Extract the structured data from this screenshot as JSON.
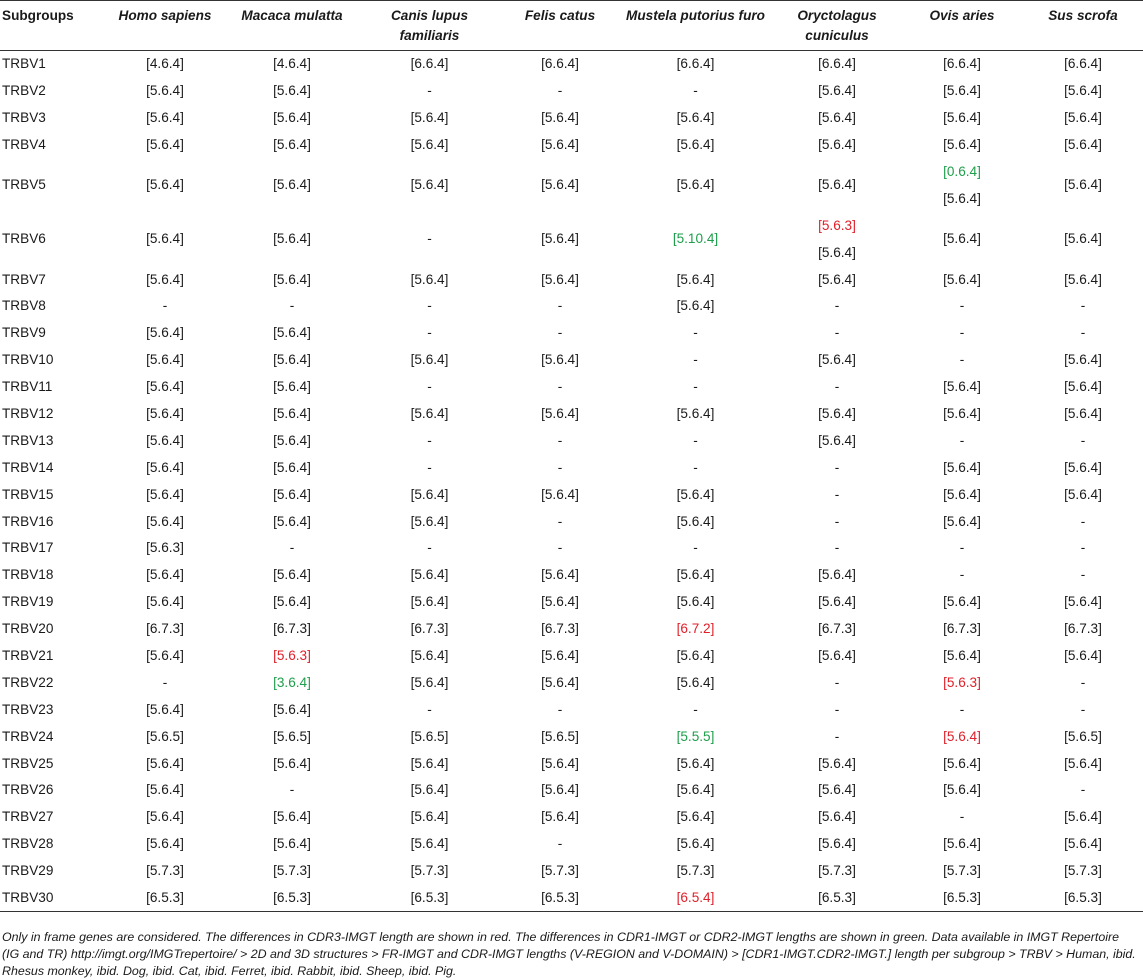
{
  "table": {
    "headers": [
      "Subgroups",
      "Homo sapiens",
      "Macaca mulatta",
      "Canis lupus familiaris",
      "Felis catus",
      "Mustela putorius furo",
      "Oryctolagus cuniculus",
      "Ovis aries",
      "Sus scrofa"
    ],
    "colors": {
      "red": "#e0202a",
      "green": "#1f9e4b"
    },
    "rows": [
      [
        "TRBV1",
        "[4.6.4]",
        "[4.6.4]",
        "[6.6.4]",
        "[6.6.4]",
        "[6.6.4]",
        "[6.6.4]",
        "[6.6.4]",
        "[6.6.4]"
      ],
      [
        "TRBV2",
        "[5.6.4]",
        "[5.6.4]",
        "-",
        "-",
        "-",
        "[5.6.4]",
        "[5.6.4]",
        "[5.6.4]"
      ],
      [
        "TRBV3",
        "[5.6.4]",
        "[5.6.4]",
        "[5.6.4]",
        "[5.6.4]",
        "[5.6.4]",
        "[5.6.4]",
        "[5.6.4]",
        "[5.6.4]"
      ],
      [
        "TRBV4",
        "[5.6.4]",
        "[5.6.4]",
        "[5.6.4]",
        "[5.6.4]",
        "[5.6.4]",
        "[5.6.4]",
        "[5.6.4]",
        "[5.6.4]"
      ],
      [
        "TRBV5",
        "[5.6.4]",
        "[5.6.4]",
        "[5.6.4]",
        "[5.6.4]",
        "[5.6.4]",
        "[5.6.4]",
        [
          {
            "t": "[0.6.4]",
            "c": "green"
          },
          {
            "t": "[5.6.4]"
          }
        ],
        "[5.6.4]"
      ],
      [
        "TRBV6",
        "[5.6.4]",
        "[5.6.4]",
        "-",
        "[5.6.4]",
        {
          "t": "[5.10.4]",
          "c": "green"
        },
        [
          {
            "t": "[5.6.3]",
            "c": "red"
          },
          {
            "t": "[5.6.4]"
          }
        ],
        "[5.6.4]",
        "[5.6.4]"
      ],
      [
        "TRBV7",
        "[5.6.4]",
        "[5.6.4]",
        "[5.6.4]",
        "[5.6.4]",
        "[5.6.4]",
        "[5.6.4]",
        "[5.6.4]",
        "[5.6.4]"
      ],
      [
        "TRBV8",
        "-",
        "-",
        "-",
        "-",
        "[5.6.4]",
        "-",
        "-",
        "-"
      ],
      [
        "TRBV9",
        "[5.6.4]",
        "[5.6.4]",
        "-",
        "-",
        "-",
        "-",
        "-",
        "-"
      ],
      [
        "TRBV10",
        "[5.6.4]",
        "[5.6.4]",
        "[5.6.4]",
        "[5.6.4]",
        "-",
        "[5.6.4]",
        "-",
        "[5.6.4]"
      ],
      [
        "TRBV11",
        "[5.6.4]",
        "[5.6.4]",
        "-",
        "-",
        "-",
        "-",
        "[5.6.4]",
        "[5.6.4]"
      ],
      [
        "TRBV12",
        "[5.6.4]",
        "[5.6.4]",
        "[5.6.4]",
        "[5.6.4]",
        "[5.6.4]",
        "[5.6.4]",
        "[5.6.4]",
        "[5.6.4]"
      ],
      [
        "TRBV13",
        "[5.6.4]",
        "[5.6.4]",
        "-",
        "-",
        "-",
        "[5.6.4]",
        "-",
        "-"
      ],
      [
        "TRBV14",
        "[5.6.4]",
        "[5.6.4]",
        "-",
        "-",
        "-",
        "-",
        "[5.6.4]",
        "[5.6.4]"
      ],
      [
        "TRBV15",
        "[5.6.4]",
        "[5.6.4]",
        "[5.6.4]",
        "[5.6.4]",
        "[5.6.4]",
        "-",
        "[5.6.4]",
        "[5.6.4]"
      ],
      [
        "TRBV16",
        "[5.6.4]",
        "[5.6.4]",
        "[5.6.4]",
        "-",
        "[5.6.4]",
        "-",
        "[5.6.4]",
        "-"
      ],
      [
        "TRBV17",
        "[5.6.3]",
        "-",
        "-",
        "-",
        "-",
        "-",
        "-",
        "-"
      ],
      [
        "TRBV18",
        "[5.6.4]",
        "[5.6.4]",
        "[5.6.4]",
        "[5.6.4]",
        "[5.6.4]",
        "[5.6.4]",
        "-",
        "-"
      ],
      [
        "TRBV19",
        "[5.6.4]",
        "[5.6.4]",
        "[5.6.4]",
        "[5.6.4]",
        "[5.6.4]",
        "[5.6.4]",
        "[5.6.4]",
        "[5.6.4]"
      ],
      [
        "TRBV20",
        "[6.7.3]",
        "[6.7.3]",
        "[6.7.3]",
        "[6.7.3]",
        {
          "t": "[6.7.2]",
          "c": "red"
        },
        "[6.7.3]",
        "[6.7.3]",
        "[6.7.3]"
      ],
      [
        "TRBV21",
        "[5.6.4]",
        {
          "t": "[5.6.3]",
          "c": "red"
        },
        "[5.6.4]",
        "[5.6.4]",
        "[5.6.4]",
        "[5.6.4]",
        "[5.6.4]",
        "[5.6.4]"
      ],
      [
        "TRBV22",
        "-",
        {
          "t": "[3.6.4]",
          "c": "green"
        },
        "[5.6.4]",
        "[5.6.4]",
        "[5.6.4]",
        "-",
        {
          "t": "[5.6.3]",
          "c": "red"
        },
        "-"
      ],
      [
        "TRBV23",
        "[5.6.4]",
        "[5.6.4]",
        "-",
        "-",
        "-",
        "-",
        "-",
        "-"
      ],
      [
        "TRBV24",
        "[5.6.5]",
        "[5.6.5]",
        "[5.6.5]",
        "[5.6.5]",
        {
          "t": "[5.5.5]",
          "c": "green"
        },
        "-",
        {
          "t": "[5.6.4]",
          "c": "red"
        },
        "[5.6.5]"
      ],
      [
        "TRBV25",
        "[5.6.4]",
        "[5.6.4]",
        "[5.6.4]",
        "[5.6.4]",
        "[5.6.4]",
        "[5.6.4]",
        "[5.6.4]",
        "[5.6.4]"
      ],
      [
        "TRBV26",
        "[5.6.4]",
        "-",
        "[5.6.4]",
        "[5.6.4]",
        "[5.6.4]",
        "[5.6.4]",
        "[5.6.4]",
        "-"
      ],
      [
        "TRBV27",
        "[5.6.4]",
        "[5.6.4]",
        "[5.6.4]",
        "[5.6.4]",
        "[5.6.4]",
        "[5.6.4]",
        "-",
        "[5.6.4]"
      ],
      [
        "TRBV28",
        "[5.6.4]",
        "[5.6.4]",
        "[5.6.4]",
        "-",
        "[5.6.4]",
        "[5.6.4]",
        "[5.6.4]",
        "[5.6.4]"
      ],
      [
        "TRBV29",
        "[5.7.3]",
        "[5.7.3]",
        "[5.7.3]",
        "[5.7.3]",
        "[5.7.3]",
        "[5.7.3]",
        "[5.7.3]",
        "[5.7.3]"
      ],
      [
        "TRBV30",
        "[6.5.3]",
        "[6.5.3]",
        "[6.5.3]",
        "[6.5.3]",
        {
          "t": "[6.5.4]",
          "c": "red"
        },
        "[6.5.3]",
        "[6.5.3]",
        "[6.5.3]"
      ]
    ]
  },
  "footnote": "Only in frame genes are considered. The differences in CDR3-IMGT length are shown in red. The differences in CDR1-IMGT or CDR2-IMGT lengths are shown in green. Data available in IMGT Repertoire (IG and TR) http://imgt.org/IMGTrepertoire/ > 2D and 3D structures > FR-IMGT and CDR-IMGT lengths (V-REGION and V-DOMAIN) > [CDR1-IMGT.CDR2-IMGT.] length per subgroup > TRBV > Human, ibid. Rhesus monkey, ibid. Dog, ibid. Cat, ibid. Ferret, ibid. Rabbit, ibid. Sheep, ibid. Pig."
}
